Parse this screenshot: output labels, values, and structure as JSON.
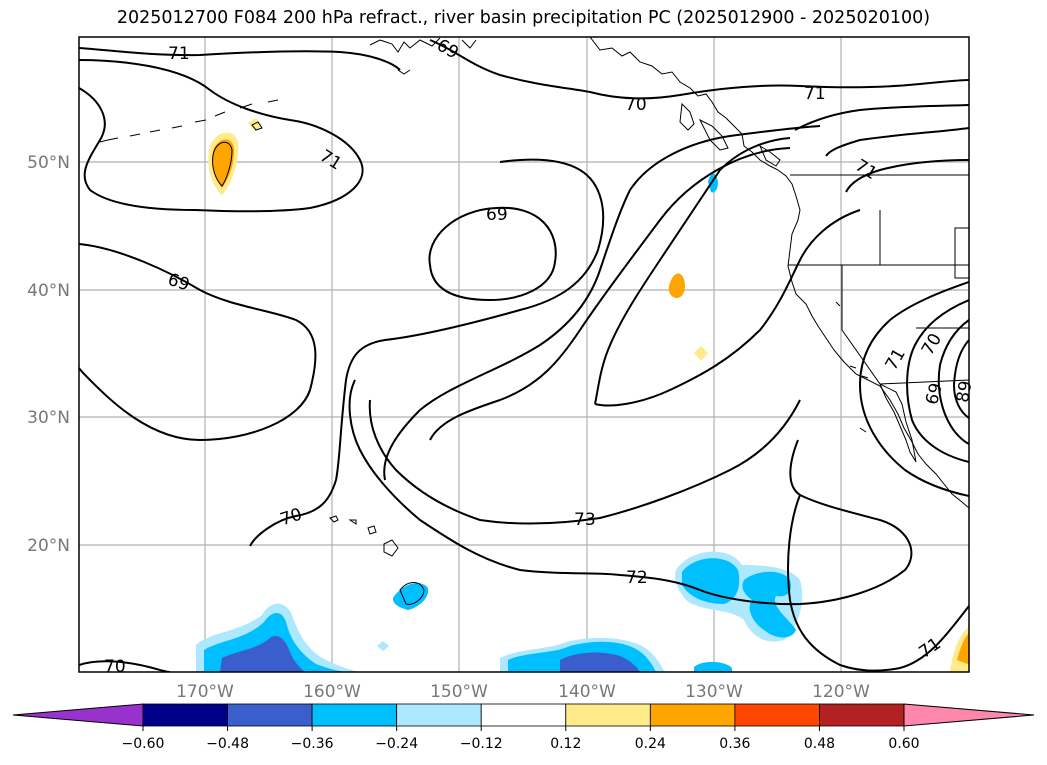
{
  "title": "2025012700 F084 200 hPa refract., river basin precipitation PC (2025012900 - 2025020100)",
  "lat_labels": [
    "50°N",
    "40°N",
    "30°N",
    "20°N"
  ],
  "lon_labels": [
    "170°W",
    "160°W",
    "150°W",
    "140°W",
    "130°W",
    "120°W"
  ],
  "contour_labels": [
    {
      "text": "71"
    },
    {
      "text": "69"
    },
    {
      "text": "70"
    },
    {
      "text": "71"
    },
    {
      "text": "71"
    },
    {
      "text": "71"
    },
    {
      "text": "69"
    },
    {
      "text": "69"
    },
    {
      "text": "71"
    },
    {
      "text": "70"
    },
    {
      "text": "69"
    },
    {
      "text": "89"
    },
    {
      "text": "70"
    },
    {
      "text": "73"
    },
    {
      "text": "72"
    },
    {
      "text": "71"
    },
    {
      "text": "70"
    }
  ],
  "colorbar": {
    "colors": [
      "#9932cc",
      "#00008b",
      "#3a5fcd",
      "#00bfff",
      "#ade8ff",
      "#ffffff",
      "#ffeb8a",
      "#ffa500",
      "#ff4500",
      "#b22222",
      "#ff87ab"
    ],
    "tick_labels": [
      "−0.60",
      "−0.48",
      "−0.36",
      "−0.24",
      "−0.12",
      "0.12",
      "0.24",
      "0.36",
      "0.48",
      "0.60"
    ]
  },
  "shading_colors": {
    "pos_light": "#ffeb8a",
    "pos_mid": "#ffa500",
    "neg_light": "#ade8ff",
    "neg_mid": "#00bfff",
    "neg_strong": "#3a5fcd"
  }
}
